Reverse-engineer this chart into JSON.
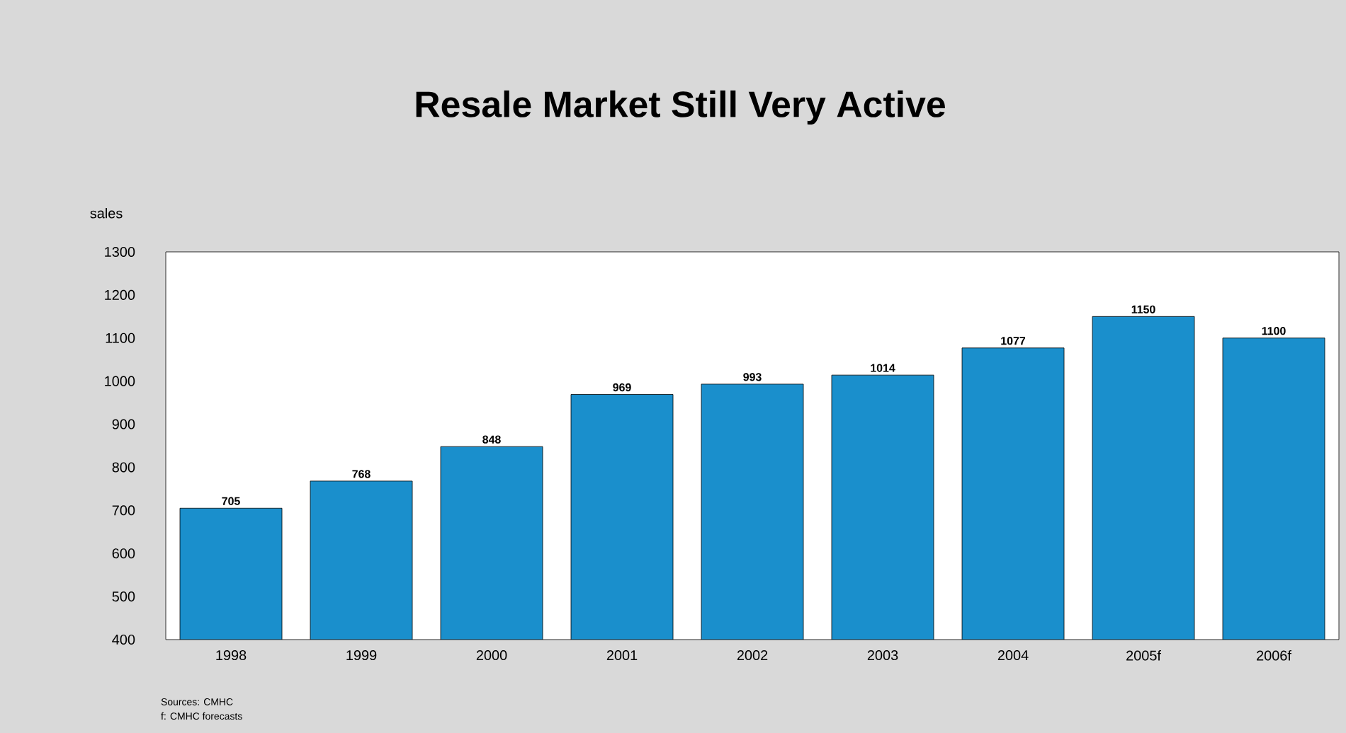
{
  "chart_data": {
    "type": "bar",
    "title": "Resale Market Still Very Active",
    "ylabel": "sales",
    "categories": [
      "1998",
      "1999",
      "2000",
      "2001",
      "2002",
      "2003",
      "2004",
      "2005f",
      "2006f"
    ],
    "values": [
      705,
      768,
      848,
      969,
      993,
      1014,
      1077,
      1150,
      1100
    ],
    "color": "#1a8fcc",
    "ylim": [
      400,
      1300
    ],
    "yticks": [
      400,
      500,
      600,
      700,
      800,
      900,
      1000,
      1100,
      1200,
      1300
    ],
    "data_labels": true,
    "grid": false,
    "annotations": [
      "Sources: CMHC",
      "f: CMHC forecasts"
    ]
  }
}
